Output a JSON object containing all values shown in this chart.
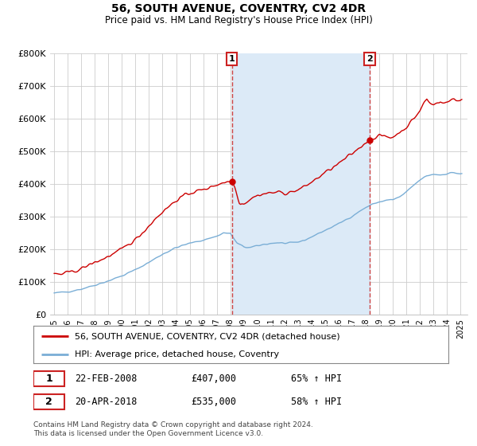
{
  "title": "56, SOUTH AVENUE, COVENTRY, CV2 4DR",
  "subtitle": "Price paid vs. HM Land Registry's House Price Index (HPI)",
  "legend_line1": "56, SOUTH AVENUE, COVENTRY, CV2 4DR (detached house)",
  "legend_line2": "HPI: Average price, detached house, Coventry",
  "footnote": "Contains HM Land Registry data © Crown copyright and database right 2024.\nThis data is licensed under the Open Government Licence v3.0.",
  "transaction1_label": "1",
  "transaction1_date": "22-FEB-2008",
  "transaction1_price": "£407,000",
  "transaction1_hpi": "65% ↑ HPI",
  "transaction2_label": "2",
  "transaction2_date": "20-APR-2018",
  "transaction2_price": "£535,000",
  "transaction2_hpi": "58% ↑ HPI",
  "vline1_x": 2008.12,
  "vline2_x": 2018.29,
  "marker1_price": 407000,
  "marker2_price": 535000,
  "red_color": "#cc0000",
  "blue_color": "#7aaed6",
  "shade_color": "#dceaf7",
  "vline_color": "#cc4444",
  "grid_color": "#cccccc",
  "background_color": "#ffffff",
  "ylim": [
    0,
    800000
  ],
  "xlim": [
    1994.7,
    2025.5
  ],
  "yticks": [
    0,
    100000,
    200000,
    300000,
    400000,
    500000,
    600000,
    700000,
    800000
  ],
  "ylabels": [
    "£0",
    "£100K",
    "£200K",
    "£300K",
    "£400K",
    "£500K",
    "£600K",
    "£700K",
    "£800K"
  ]
}
